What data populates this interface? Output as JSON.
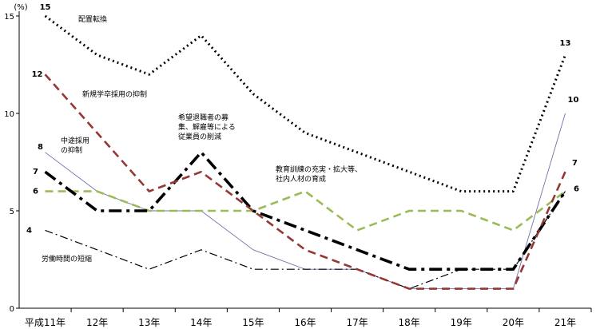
{
  "chart_data": {
    "type": "line",
    "ylabel": "(%)",
    "ylim": [
      0,
      15
    ],
    "yticks": [
      "0",
      "5",
      "10",
      "15"
    ],
    "grid": false,
    "categories": [
      "平成11年",
      "12年",
      "13年",
      "14年",
      "15年",
      "16年",
      "17年",
      "18年",
      "19年",
      "20年",
      "21年"
    ],
    "series": [
      {
        "name": "配置転換",
        "values": [
          15,
          13,
          12,
          14,
          11,
          9,
          8,
          7,
          6,
          6,
          13
        ],
        "color": "#000000",
        "style": "dotted"
      },
      {
        "name": "新規学卒採用の抑制",
        "values": [
          12,
          9,
          6,
          7,
          5,
          3,
          2,
          1,
          1,
          1,
          7
        ],
        "color": "#953735",
        "style": "dashed"
      },
      {
        "name": "中途採用の抑制",
        "values": [
          8,
          6,
          5,
          5,
          3,
          2,
          2,
          1,
          1,
          1,
          10
        ],
        "color": "#7070a8",
        "style": "solid"
      },
      {
        "name": "希望退職者の募集、解雇等による従業員の削減",
        "values": [
          7,
          5,
          5,
          8,
          5,
          4,
          3,
          2,
          2,
          2,
          6
        ],
        "color": "#000000",
        "style": "dashdot-heavy"
      },
      {
        "name": "教育訓練の充実・拡大等、社内人材の育成",
        "values": [
          6,
          6,
          5,
          5,
          5,
          6,
          4,
          5,
          5,
          4,
          6
        ],
        "color": "#9bbb59",
        "style": "dashed"
      },
      {
        "name": "労働時間の短縮",
        "values": [
          4,
          3,
          2,
          3,
          2,
          2,
          2,
          1,
          2,
          2,
          6
        ],
        "color": "#000000",
        "style": "dashdot"
      }
    ],
    "data_labels": [
      {
        "series": 0,
        "index": 0,
        "text": "15"
      },
      {
        "series": 1,
        "index": 0,
        "text": "12"
      },
      {
        "series": 2,
        "index": 0,
        "text": "8"
      },
      {
        "series": 3,
        "index": 0,
        "text": "7"
      },
      {
        "series": 4,
        "index": 0,
        "text": "6"
      },
      {
        "series": 5,
        "index": 0,
        "text": "4"
      },
      {
        "series": 0,
        "index": 10,
        "text": "13"
      },
      {
        "series": 2,
        "index": 10,
        "text": "10"
      },
      {
        "series": 1,
        "index": 10,
        "text": "7"
      },
      {
        "series": 4,
        "index": 10,
        "text": "6"
      }
    ],
    "annotations": [
      {
        "series": 0,
        "lines": [
          "配置転換"
        ]
      },
      {
        "series": 1,
        "lines": [
          "新規学卒採用の抑制"
        ]
      },
      {
        "series": 2,
        "lines": [
          "中途採用",
          "の抑制"
        ]
      },
      {
        "series": 3,
        "lines": [
          "希望退職者の募",
          "集、解雇等による",
          "従業員の削減"
        ]
      },
      {
        "series": 4,
        "lines": [
          "教育訓練の充実・拡大等、",
          "社内人材の育成"
        ]
      },
      {
        "series": 5,
        "lines": [
          "労働時間の短縮"
        ]
      }
    ]
  }
}
